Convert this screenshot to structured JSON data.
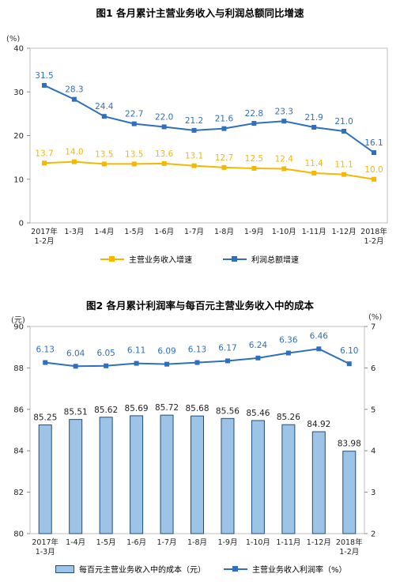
{
  "chart_data": [
    {
      "type": "line",
      "title": "图1  各月累计主营业务收入与利润总额同比增速",
      "y_unit": "(%)",
      "ylim": [
        0,
        40
      ],
      "yticks": [
        "0",
        "10",
        "20",
        "30",
        "40"
      ],
      "categories": [
        "2017年\n1-2月",
        "1-3月",
        "1-4月",
        "1-5月",
        "1-6月",
        "1-7月",
        "1-8月",
        "1-9月",
        "1-10月",
        "1-11月",
        "1-12月",
        "2018年\n1-2月"
      ],
      "series": [
        {
          "name": "主营业务收入增速",
          "color": "#f5b800",
          "values": [
            13.7,
            14.0,
            13.5,
            13.5,
            13.6,
            13.1,
            12.7,
            12.5,
            12.4,
            11.4,
            11.1,
            10.0
          ]
        },
        {
          "name": "利润总额增速",
          "color": "#2f6fbd",
          "values": [
            31.5,
            28.3,
            24.4,
            22.7,
            22.0,
            21.2,
            21.6,
            22.8,
            23.3,
            21.9,
            21.0,
            16.1
          ]
        }
      ],
      "grid": false,
      "legend": "bottom"
    },
    {
      "type": "bar+line",
      "title": "图2  各月累计利润率与每百元主营业务收入中的成本",
      "left_unit": "(元)",
      "right_unit": "(%)",
      "ylim_left": [
        80,
        90
      ],
      "yticks_left": [
        "80",
        "82",
        "84",
        "86",
        "88",
        "90"
      ],
      "ylim_right": [
        2,
        7
      ],
      "yticks_right": [
        "2",
        "3",
        "4",
        "5",
        "6",
        "7"
      ],
      "categories": [
        "2017年\n1-3月",
        "1-4月",
        "1-5月",
        "1-6月",
        "1-7月",
        "1-8月",
        "1-9月",
        "1-10月",
        "1-11月",
        "1-12月",
        "2018年\n1-2月"
      ],
      "bar_series": {
        "name": "每百元主营业务收入中的成本（元）",
        "color": "#9dc3e6",
        "values": [
          85.25,
          85.51,
          85.62,
          85.69,
          85.72,
          85.68,
          85.56,
          85.46,
          85.26,
          84.92,
          83.98
        ]
      },
      "line_series": {
        "name": "主营业务收入利润率（%）",
        "color": "#2f6fbd",
        "values": [
          6.13,
          6.04,
          6.05,
          6.11,
          6.09,
          6.13,
          6.17,
          6.24,
          6.36,
          6.46,
          6.1
        ]
      },
      "grid": false,
      "legend": "bottom"
    }
  ]
}
